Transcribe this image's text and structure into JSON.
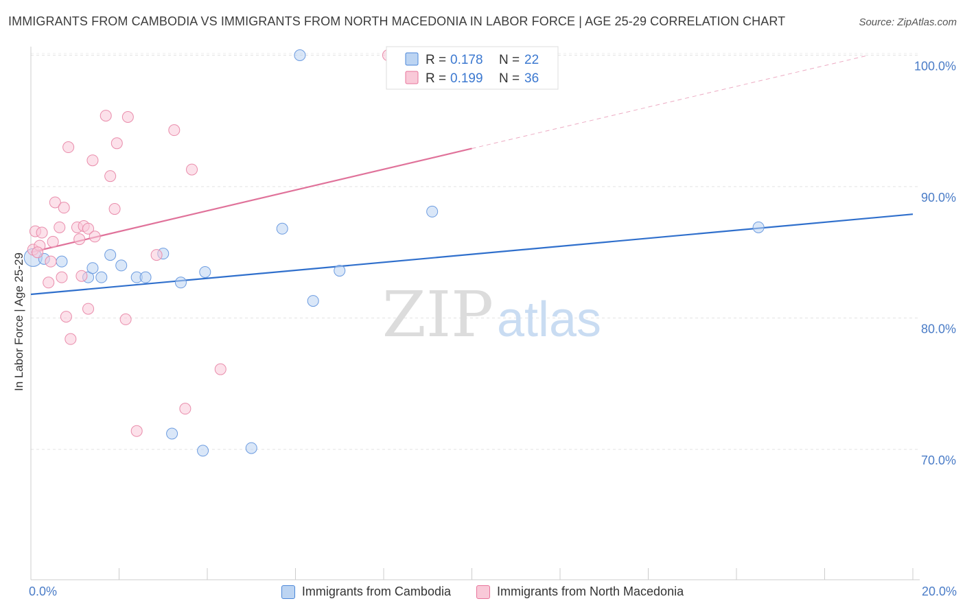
{
  "title": "IMMIGRANTS FROM CAMBODIA VS IMMIGRANTS FROM NORTH MACEDONIA IN LABOR FORCE | AGE 25-29 CORRELATION CHART",
  "source": "Source: ZipAtlas.com",
  "watermark": {
    "zip": "ZIP",
    "atlas": "atlas"
  },
  "colors": {
    "cambodia": "#4a86d8",
    "north_macedonia": "#e8739a",
    "tick_text": "#4a7cc7"
  },
  "chart_data": {
    "type": "scatter",
    "title": "IMMIGRANTS FROM CAMBODIA VS IMMIGRANTS FROM NORTH MACEDONIA IN LABOR FORCE | AGE 25-29 CORRELATION CHART",
    "xlabel": "",
    "ylabel": "In Labor Force | Age 25-29",
    "xlim": [
      0,
      20
    ],
    "ylim": [
      60,
      102
    ],
    "x_tick_labels": [
      "0.0%",
      "20.0%"
    ],
    "y_ticks": [
      70,
      80,
      90,
      100
    ],
    "y_tick_labels": [
      "70.0%",
      "80.0%",
      "90.0%",
      "100.0%"
    ],
    "grid": true,
    "legend_position": "top",
    "series": [
      {
        "name": "Immigrants from Cambodia",
        "R": "0.178",
        "N": "22",
        "points": [
          [
            0.05,
            84.6
          ],
          [
            0.3,
            84.5
          ],
          [
            0.7,
            84.3
          ],
          [
            1.3,
            83.1
          ],
          [
            1.4,
            83.8
          ],
          [
            1.6,
            83.1
          ],
          [
            1.8,
            84.8
          ],
          [
            2.05,
            84.0
          ],
          [
            2.4,
            83.1
          ],
          [
            2.6,
            83.1
          ],
          [
            3.0,
            84.9
          ],
          [
            3.4,
            82.7
          ],
          [
            3.2,
            71.2
          ],
          [
            3.9,
            69.9
          ],
          [
            3.95,
            83.5
          ],
          [
            5.0,
            70.1
          ],
          [
            5.7,
            86.8
          ],
          [
            6.1,
            100.0
          ],
          [
            6.4,
            81.3
          ],
          [
            7.0,
            83.6
          ],
          [
            9.1,
            88.1
          ],
          [
            16.5,
            86.9
          ]
        ],
        "trend": {
          "x": [
            0,
            20
          ],
          "y": [
            81.8,
            87.9
          ],
          "dashed_extension": false
        }
      },
      {
        "name": "Immigrants from North Macedonia",
        "R": "0.199",
        "N": "36",
        "points": [
          [
            0.05,
            85.2
          ],
          [
            0.1,
            86.6
          ],
          [
            0.2,
            85.5
          ],
          [
            0.25,
            86.5
          ],
          [
            0.4,
            82.7
          ],
          [
            0.45,
            84.3
          ],
          [
            0.5,
            85.8
          ],
          [
            0.55,
            88.8
          ],
          [
            0.65,
            86.9
          ],
          [
            0.7,
            83.1
          ],
          [
            0.75,
            88.4
          ],
          [
            0.8,
            80.1
          ],
          [
            0.85,
            93.0
          ],
          [
            0.9,
            78.4
          ],
          [
            1.05,
            86.9
          ],
          [
            1.1,
            86.0
          ],
          [
            1.15,
            83.2
          ],
          [
            1.2,
            87.0
          ],
          [
            1.3,
            80.7
          ],
          [
            1.3,
            86.8
          ],
          [
            1.4,
            92.0
          ],
          [
            1.45,
            86.2
          ],
          [
            1.7,
            95.4
          ],
          [
            1.8,
            90.8
          ],
          [
            1.9,
            88.3
          ],
          [
            1.95,
            93.3
          ],
          [
            2.15,
            79.9
          ],
          [
            2.2,
            95.3
          ],
          [
            2.4,
            71.4
          ],
          [
            2.85,
            84.8
          ],
          [
            3.25,
            94.3
          ],
          [
            3.5,
            73.1
          ],
          [
            3.65,
            91.3
          ],
          [
            4.3,
            76.1
          ],
          [
            8.1,
            100.0
          ],
          [
            0.15,
            85.0
          ]
        ],
        "trend": {
          "x": [
            0,
            10
          ],
          "y": [
            85.0,
            92.9
          ],
          "dashed_to": {
            "x": 19.0,
            "y": 100.0
          }
        }
      }
    ]
  }
}
